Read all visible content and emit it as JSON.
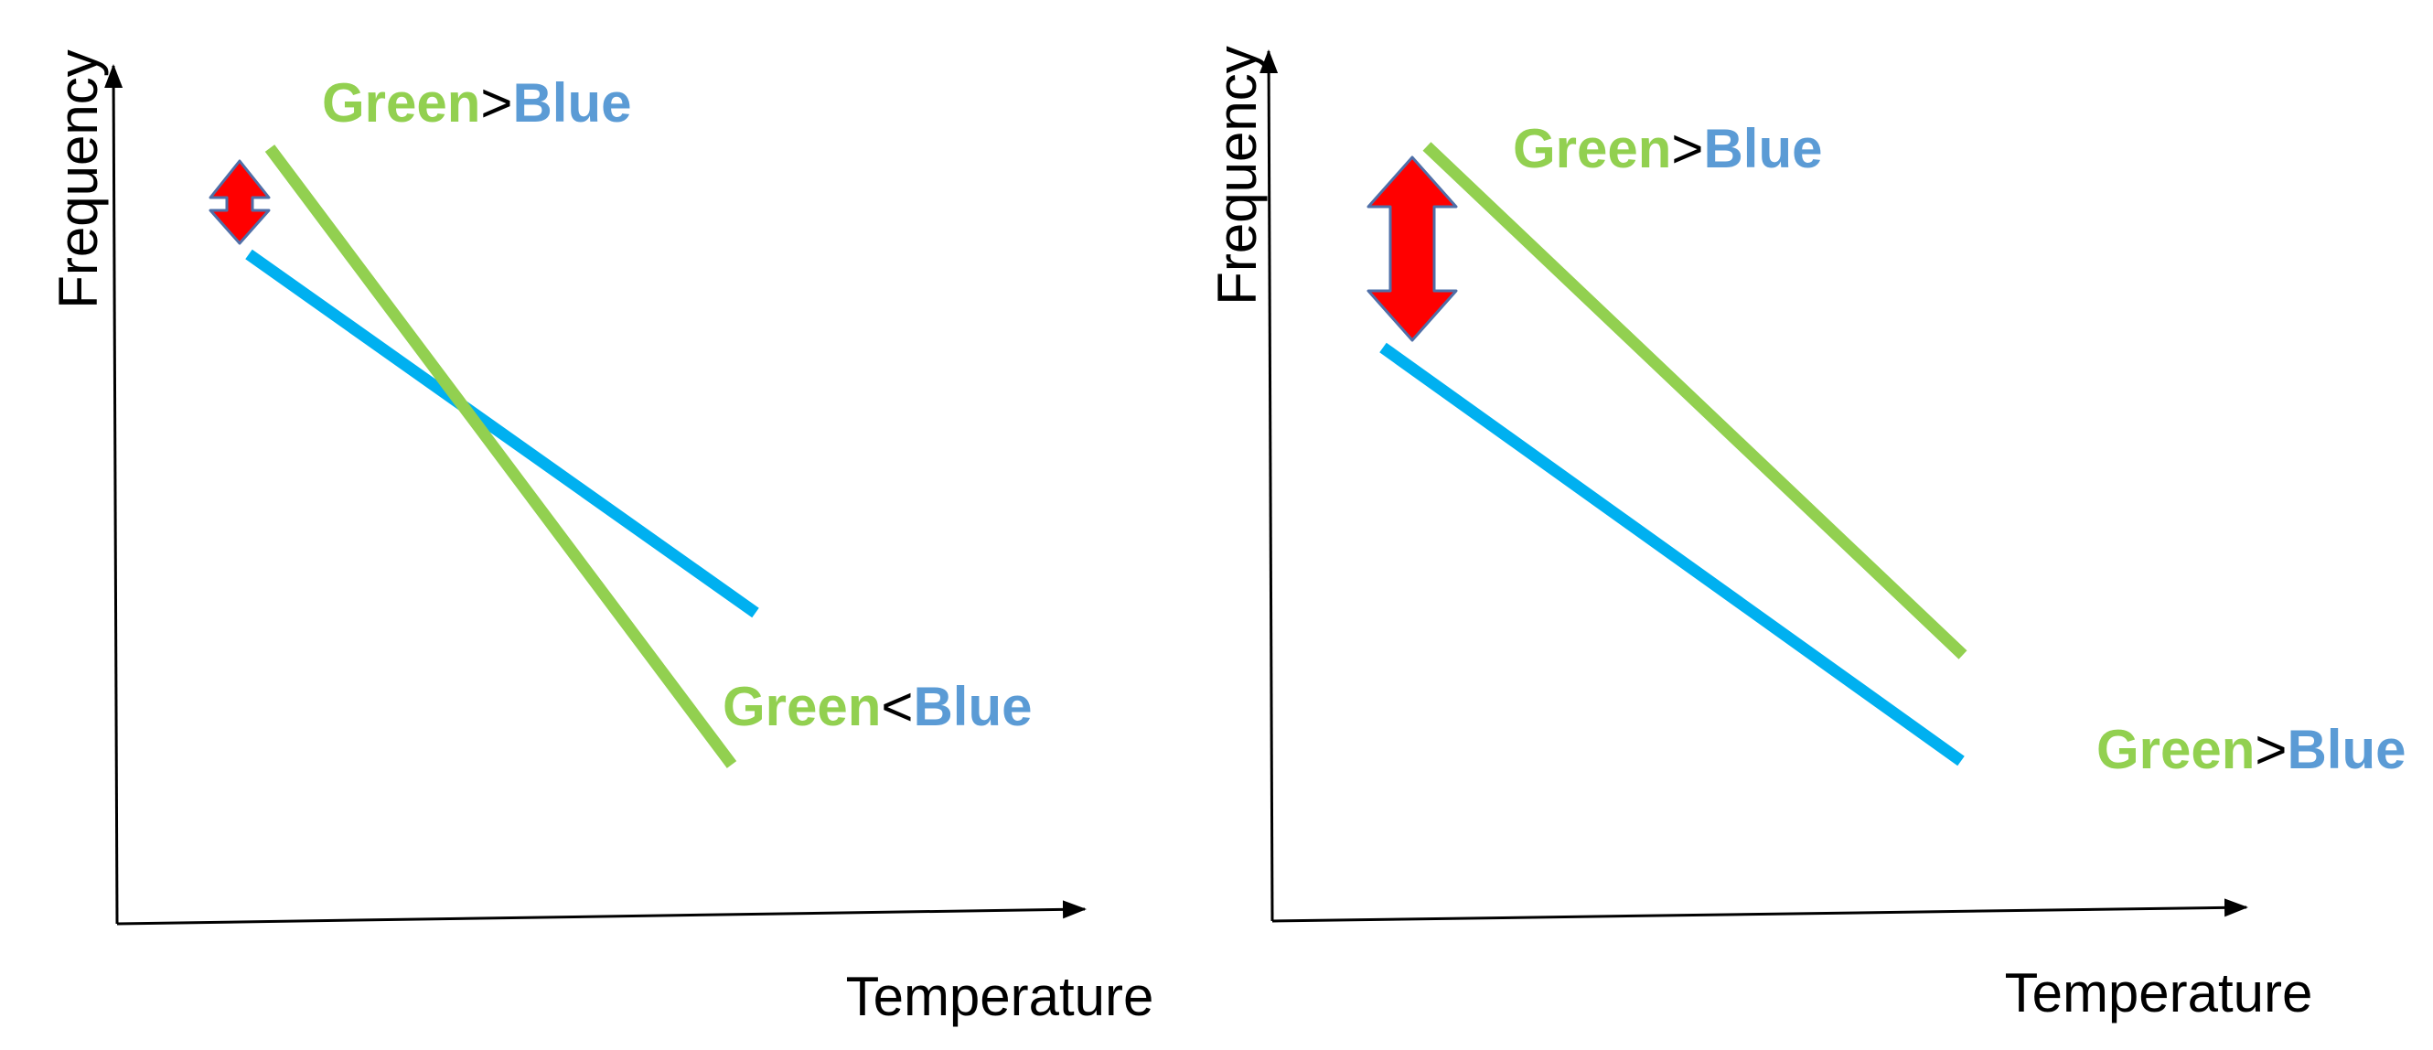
{
  "colors": {
    "green": "#92d050",
    "blue": "#00b0f0",
    "label_blue": "#5b9bd5",
    "arrow_fill": "#ff0000",
    "arrow_stroke": "#4f6fa8",
    "axis": "#000000"
  },
  "panels": [
    {
      "id": "left",
      "y_axis_label": "Frequency",
      "x_axis_label": "Temperature",
      "labels": [
        {
          "first": "Green",
          "op": ">",
          "second": "Blue"
        },
        {
          "first": "Green",
          "op": "<",
          "second": "Blue"
        }
      ],
      "lines": [
        {
          "series": "green",
          "trend": "steep decrease, crosses blue"
        },
        {
          "series": "blue",
          "trend": "shallow decrease"
        }
      ],
      "gap_arrow": "small"
    },
    {
      "id": "right",
      "y_axis_label": "Frequency",
      "x_axis_label": "Temperature",
      "labels": [
        {
          "first": "Green",
          "op": ">",
          "second": "Blue"
        },
        {
          "first": "Green",
          "op": ">",
          "second": "Blue"
        }
      ],
      "lines": [
        {
          "series": "green",
          "trend": "decrease, stays above blue"
        },
        {
          "series": "blue",
          "trend": "decrease"
        }
      ],
      "gap_arrow": "large"
    }
  ]
}
